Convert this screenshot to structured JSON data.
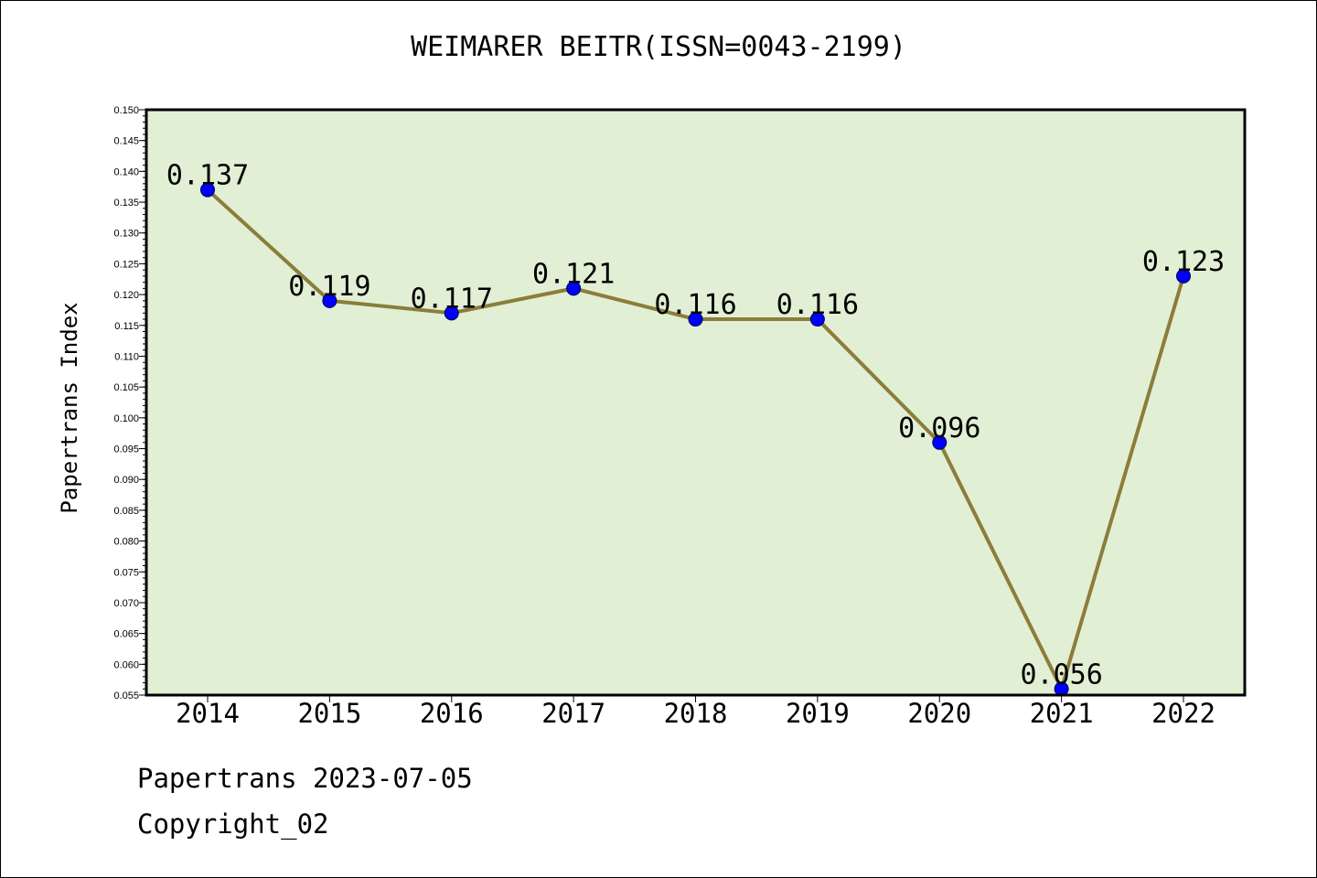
{
  "colors": {
    "plot_background": "#e1efd5",
    "line": "#8b7d3a",
    "marker": "#0000ff"
  },
  "chart_data": {
    "type": "line",
    "title": "WEIMARER BEITR(ISSN=0043-2199)",
    "xlabel": "",
    "ylabel": "Papertrans Index",
    "categories": [
      "2014",
      "2015",
      "2016",
      "2017",
      "2018",
      "2019",
      "2020",
      "2021",
      "2022"
    ],
    "values": [
      0.137,
      0.119,
      0.117,
      0.121,
      0.116,
      0.116,
      0.096,
      0.056,
      0.123
    ],
    "data_labels": [
      "0.137",
      "0.119",
      "0.117",
      "0.121",
      "0.116",
      "0.116",
      "0.096",
      "0.056",
      "0.123"
    ],
    "ylim": [
      0.055,
      0.15
    ],
    "yticks": [
      "0.055",
      "0.060",
      "0.065",
      "0.070",
      "0.075",
      "0.080",
      "0.085",
      "0.090",
      "0.095",
      "0.100",
      "0.105",
      "0.110",
      "0.115",
      "0.120",
      "0.125",
      "0.130",
      "0.135",
      "0.140",
      "0.145",
      "0.150"
    ],
    "grid": false,
    "legend": "none"
  },
  "footer": {
    "line1": "Papertrans 2023-07-05",
    "line2": "Copyright_02"
  }
}
